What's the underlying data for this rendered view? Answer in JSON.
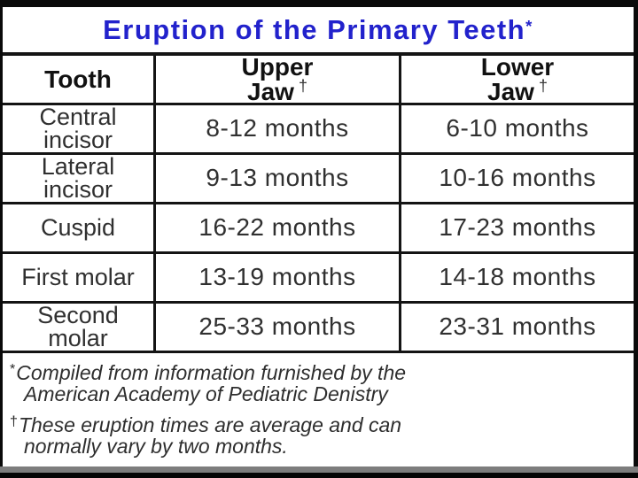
{
  "title": {
    "text": "Eruption of the Primary Teeth",
    "marker": "*"
  },
  "header": {
    "tooth": "Tooth",
    "upper_line1": "Upper",
    "upper_line2": "Jaw",
    "lower_line1": "Lower",
    "lower_line2": "Jaw",
    "jaw_marker": "†"
  },
  "table": {
    "rows": [
      {
        "tooth": "Central incisor",
        "upper": "8-12 months",
        "lower": "6-10 months"
      },
      {
        "tooth": "Lateral incisor",
        "upper": "9-13 months",
        "lower": "10-16 months"
      },
      {
        "tooth": "Cuspid",
        "upper": "16-22 months",
        "lower": "17-23 months"
      },
      {
        "tooth": "First molar",
        "upper": "13-19 months",
        "lower": "14-18 months"
      },
      {
        "tooth": "Second molar",
        "upper": "25-33 months",
        "lower": "23-31 months"
      }
    ]
  },
  "footnotes": [
    {
      "marker": "*",
      "line1": "Compiled from information furnished by the",
      "line2": "American Academy of Pediatric Denistry"
    },
    {
      "marker": "†",
      "line1": "These eruption times are average and can",
      "line2": "normally vary by two months."
    }
  ],
  "colors": {
    "title_blue": "#2222cc",
    "border_black": "#141414",
    "text_dark": "#303030",
    "bottom_bar_gray": "#7d7d7d",
    "background": "#0a0a0a"
  }
}
